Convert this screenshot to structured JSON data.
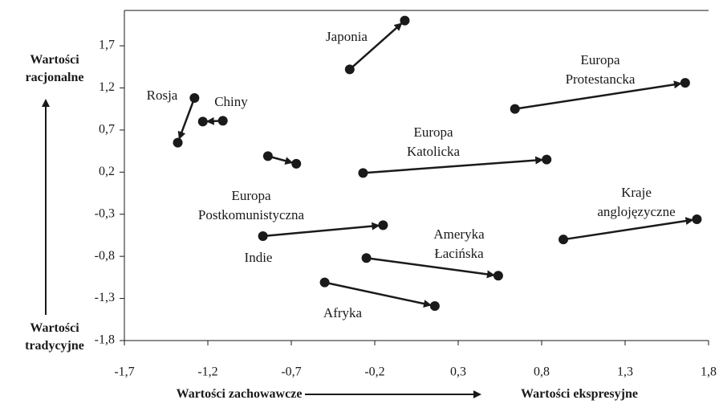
{
  "chart_data": {
    "type": "arrow",
    "y_label_top": "Wartości\nracjonalne",
    "y_label_bottom": "Wartości\ntradycyjne",
    "x_label_left": "Wartości zachowawcze",
    "x_label_right": "Wartości ekspresyjne",
    "color": "#1a1a1a",
    "xlim": [
      -1.7,
      1.8
    ],
    "ylim": [
      -1.8,
      2.12
    ],
    "xticks": [
      {
        "value": -1.7,
        "label": "-1,7"
      },
      {
        "value": -1.2,
        "label": "-1,2"
      },
      {
        "value": -0.7,
        "label": "-0,7"
      },
      {
        "value": -0.2,
        "label": "-0,2"
      },
      {
        "value": 0.3,
        "label": "0,3"
      },
      {
        "value": 0.8,
        "label": "0,8"
      },
      {
        "value": 1.3,
        "label": "1,3"
      },
      {
        "value": 1.8,
        "label": "1,8"
      }
    ],
    "yticks": [
      {
        "value": -1.8,
        "label": "-1,8"
      },
      {
        "value": -1.3,
        "label": "-1,3"
      },
      {
        "value": -0.8,
        "label": "-0,8"
      },
      {
        "value": -0.3,
        "label": "-0,3"
      },
      {
        "value": 0.2,
        "label": "0,2"
      },
      {
        "value": 0.7,
        "label": "0,7"
      },
      {
        "value": 1.2,
        "label": "1,2"
      },
      {
        "value": 1.7,
        "label": "1,7"
      }
    ],
    "series": [
      {
        "name": "Japonia",
        "x": [
          -0.35,
          -0.02
        ],
        "y": [
          1.42,
          2.0
        ]
      },
      {
        "name": "Rosja",
        "x": [
          -1.28,
          -1.38
        ],
        "y": [
          1.08,
          0.55
        ]
      },
      {
        "name": "Chiny",
        "x": [
          -1.11,
          -1.23
        ],
        "y": [
          0.81,
          0.8
        ]
      },
      {
        "name": "Europa\nProtestancka",
        "x": [
          0.64,
          1.66
        ],
        "y": [
          0.95,
          1.26
        ]
      },
      {
        "name": "Europa\nKatolicka",
        "x": [
          -0.27,
          0.83
        ],
        "y": [
          0.19,
          0.35
        ]
      },
      {
        "name": "Europa\nPostkomunistyczna",
        "x": [
          -0.84,
          -0.67
        ],
        "y": [
          0.39,
          0.3
        ]
      },
      {
        "name": "Kraje\nanglojęzyczne",
        "x": [
          0.93,
          1.73
        ],
        "y": [
          -0.6,
          -0.36
        ]
      },
      {
        "name": "Indie",
        "x": [
          -0.87,
          -0.15
        ],
        "y": [
          -0.56,
          -0.43
        ]
      },
      {
        "name": "Ameryka\nŁacińska",
        "x": [
          -0.25,
          0.54
        ],
        "y": [
          -0.82,
          -1.03
        ]
      },
      {
        "name": "Afryka",
        "x": [
          -0.5,
          0.16
        ],
        "y": [
          -1.11,
          -1.39
        ]
      }
    ]
  }
}
